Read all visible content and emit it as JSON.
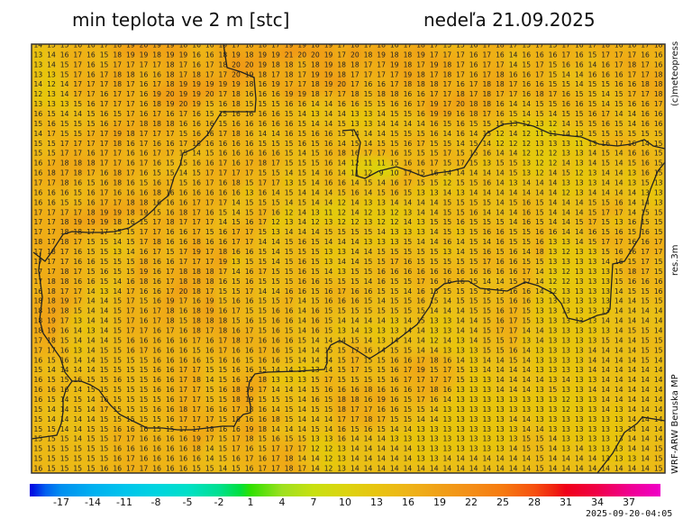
{
  "header": {
    "title": "min teplota ve 2 m [stc]",
    "date": "nedeľa 21.09.2025"
  },
  "side_labels": {
    "copyright": "(c)meteopress",
    "resolution": "res.3m",
    "model": "WRF-ARW Beruska MP"
  },
  "timestamp": "2025-09-20-04:05",
  "colorbar": {
    "labels": [
      "-17",
      "-14",
      "-11",
      "-8",
      "-5",
      "-2",
      "1",
      "4",
      "7",
      "10",
      "13",
      "16",
      "19",
      "22",
      "25",
      "28",
      "31",
      "34",
      "37"
    ],
    "range": [
      -20,
      40
    ],
    "stops": [
      {
        "v": -20,
        "c": "#0000e0"
      },
      {
        "v": -18.5,
        "c": "#0060f0"
      },
      {
        "v": -17,
        "c": "#0090f0"
      },
      {
        "v": -14,
        "c": "#00b0f0"
      },
      {
        "v": -11,
        "c": "#00c4ec"
      },
      {
        "v": -8,
        "c": "#00d4e0"
      },
      {
        "v": -5,
        "c": "#00e0c8"
      },
      {
        "v": -2,
        "c": "#00e090"
      },
      {
        "v": 0,
        "c": "#00e040"
      },
      {
        "v": 1,
        "c": "#30e000"
      },
      {
        "v": 4,
        "c": "#9ee020"
      },
      {
        "v": 7,
        "c": "#c8e010"
      },
      {
        "v": 10,
        "c": "#dcd410"
      },
      {
        "v": 13,
        "c": "#e8c410"
      },
      {
        "v": 16,
        "c": "#eeb418"
      },
      {
        "v": 19,
        "c": "#f0a018"
      },
      {
        "v": 22,
        "c": "#f48e18"
      },
      {
        "v": 25,
        "c": "#f67a10"
      },
      {
        "v": 28,
        "c": "#f65010"
      },
      {
        "v": 30,
        "c": "#f02010"
      },
      {
        "v": 31,
        "c": "#f00018"
      },
      {
        "v": 34,
        "c": "#f00048"
      },
      {
        "v": 37,
        "c": "#f00090"
      },
      {
        "v": 40,
        "c": "#f000c8"
      }
    ]
  },
  "grid": {
    "rows": [
      "14 15 15 16 16 17 18 19 20 19 19 18 16 16 19 17 18 18 17 19 19 18 19 17 18 17 18 16 17 18 17 15 15 16 17 18 17 15 17 15 17 16 17 18 16 16 17 18",
      "13 14 16 17 16 15 18 19 19 18 19 19 16 16 18 19 18 19 19 21 20 20 19 17 20 18 19 18 18 19 17 17 17 16 17 16 14 16 16 16 17 16 15 17 17 17 16 16",
      "13 14 15 17 16 15 17 17 17 17 18 17 16 17 18 20 20 19 18 18 15 18 19 18 18 17 17 19 18 17 19 18 17 16 17 17 14 15 17 15 16 16 14 16 17 18 17 16",
      "13 13 15 17 16 17 18 18 16 16 18 17 18 17 17 20 19 18 17 18 17 19 19 18 17 17 17 17 19 18 17 18 17 16 17 18 16 16 17 15 14 14 16 16 16 17 17 18",
      "14 12 14 17 17 17 18 17 16 17 18 19 19 19 19 19 18 16 19 17 17 18 19 20 17 16 16 17 18 18 18 17 16 17 18 18 17 16 16 15 15 14 15 15 16 16 18 18",
      "12 13 14 17 17 16 17 17 16 19 20 19 19 20 17 18 16 16 16 19 19 18 17 17 18 15 18 18 16 16 17 17 18 17 18 17 17 16 18 17 16 15 15 14 15 17 17 18",
      "13 13 13 15 16 17 17 17 16 18 19 20 19 15 16 18 15 15 15 16 16 14 14 16 16 15 15 16 16 17 19 17 20 18 18 16 14 14 15 15 16 16 15 14 15 16 16 17",
      "16 15 14 14 15 16 15 17 16 17 16 17 16 15 15 16 16 16 16 15 14 13 14 14 13 13 14 15 15 16 19 19 16 18 17 16 15 14 15 14 15 15 16 17 14 14 16 16",
      "15 16 15 15 15 16 17 17 18 18 18 16 16 16 15 16 16 16 16 16 15 14 14 15 13 13 14 14 14 14 16 15 16 15 15 15 13 12 13 12 14 15 15 16 15 14 16 16",
      "14 17 15 15 17 17 19 18 17 17 17 15 16 16 17 18 16 14 14 16 15 16 16 15 14 14 14 15 15 15 16 14 16 14 15 12 14 12 11 11 14 13 15 15 15 15 15 15",
      "15 15 17 17 17 17 18 16 17 16 16 17 18 16 16 16 16 15 15 15 16 15 16 14 15 14 15 15 16 17 15 15 14 15 14 12 12 12 13 13 13 11 13 16 17 16 14 15",
      "15 15 17 17 16 17 17 16 16 17 17 15 14 15 16 16 16 16 16 15 14 15 16 18 16 17 17 16 15 15 15 17 15 15 16 14 14 12 12 12 13 13 14 15 14 16 16 15",
      "16 17 18 18 18 17 17 16 17 16 15 15 16 16 17 16 17 18 17 15 15 15 16 14 12 11 11 15 16 16 17 15 17 15 13 15 15 13 12 12 14 13 14 15 14 15 16 15",
      "16 18 17 18 17 16 18 17 16 15 15 14 15 17 17 17 17 15 15 14 15 14 16 14 11 12 9 10 17 15 16 14 14 14 14 14 15 13 12 14 15 12 13 14 14 13 16 15",
      "17 17 18 16 15 16 18 16 15 16 17 15 16 17 16 18 15 17 17 13 15 14 16 16 14 15 14 16 17 15 15 12 15 15 16 14 13 14 14 14 13 13 13 14 14 13 15 13",
      "16 16 16 15 16 17 16 16 16 18 16 16 16 16 16 16 13 16 14 15 14 14 14 15 16 14 15 16 15 13 13 14 13 14 14 14 14 14 14 14 12 13 14 14 14 14 13 13",
      "16 16 15 15 16 17 17 18 18 16 16 16 17 17 17 14 15 15 15 14 15 14 14 12 14 13 13 14 14 14 14 15 15 15 15 14 15 16 15 14 14 14 15 15 16 14 14 13",
      "17 17 17 17 18 19 19 18 19 15 16 18 17 16 15 14 15 17 16 12 14 13 11 12 14 12 13 12 13 14 14 15 15 16 14 14 14 16 15 14 14 14 15 17 17 14 15 15",
      "17 17 18 19 19 19 18 16 15 17 18 17 17 17 14 15 16 17 12 13 14 12 13 12 12 13 12 12 14 13 15 15 16 15 15 15 14 16 15 14 14 15 17 15 13 16 15 15",
      "17 17 18 18 17 17 15 15 17 17 16 16 17 15 16 17 17 15 13 14 14 14 15 15 15 15 14 13 13 13 14 15 13 15 16 16 15 15 16 16 14 14 16 15 16 15 16 15",
      "18 17 18 17 15 15 14 15 17 18 16 16 18 16 16 17 17 14 14 15 16 15 14 14 14 13 13 13 15 14 14 16 14 15 14 16 15 15 16 13 13 14 15 17 17 16 16 17",
      "17 18 17 16 15 15 13 14 16 17 15 17 19 17 18 16 16 15 14 15 15 15 13 13 14 14 15 15 15 15 15 13 14 15 16 15 16 14 18 13 12 13 13 15 16 16 17 17",
      "17 17 17 16 16 15 15 15 18 16 16 17 17 17 19 13 15 15 14 15 16 15 13 14 14 15 15 17 16 15 15 15 15 15 17 16 16 15 15 13 13 13 13 14 16 15 17 15",
      "17 17 18 17 15 16 15 15 19 16 17 18 18 18 17 14 16 17 15 15 16 15 14 13 15 15 16 16 16 16 16 16 16 16 16 16 16 17 14 13 12 13 13 13 15 18 17 15",
      "17 18 18 16 16 15 14 16 18 16 17 18 18 18 16 15 16 15 15 15 16 16 15 15 15 14 16 15 15 17 16 16 16 15 14 14 15 17 14 12 12 13 13 13 15 16 16 16",
      "16 18 17 17 14 13 14 17 16 16 17 20 18 17 15 15 17 14 14 16 16 15 16 17 16 16 15 15 14 16 15 15 15 15 15 15 16 16 14 12 13 13 13 13 14 15 15 16",
      "18 18 19 17 14 14 15 17 15 16 19 17 16 19 15 16 16 15 15 17 14 15 16 16 16 15 14 15 15 16 15 14 15 15 15 15 16 16 13 13 13 13 13 13 14 14 15 15",
      "18 19 18 15 14 14 15 17 16 17 18 16 18 19 16 17 15 15 16 16 14 16 15 15 15 15 15 15 15 15 14 14 14 15 15 16 17 15 13 13 13 13 13 13 14 14 14 14",
      "18 19 17 13 14 14 15 17 16 17 18 15 18 18 18 15 16 15 16 16 14 16 15 14 14 14 14 13 14 15 13 13 14 14 15 16 17 15 13 13 13 13 13 14 14 14 14 14",
      "18 19 16 14 13 14 15 17 17 16 17 16 18 17 18 16 17 15 16 15 14 16 15 13 14 13 13 13 14 14 13 13 14 14 15 17 17 14 14 13 13 13 13 13 14 15 15 14",
      "17 18 15 14 14 14 15 16 16 16 16 16 17 16 17 18 17 16 16 16 15 14 14 14 15 14 13 14 14 14 12 14 13 14 15 15 17 13 14 13 13 13 13 15 14 14 15 15",
      "17 17 16 13 14 15 15 16 17 16 16 16 15 16 17 16 16 17 16 15 14 14 15 15 17 16 14 15 15 14 14 13 13 13 15 15 16 14 13 13 13 13 14 14 14 14 15 15",
      "16 15 16 14 14 15 15 15 15 16 16 16 16 15 16 16 15 16 16 15 14 14 14 15 17 15 15 16 16 17 18 16 14 13 14 14 15 14 13 13 13 13 14 14 14 14 15 14",
      "15 14 14 14 14 15 15 15 15 16 16 17 17 15 15 16 16 15 14 14 13 13 14 15 17 15 15 16 17 19 15 17 15 13 14 14 14 14 13 13 13 13 14 14 14 14 14 14",
      "16 15 15 16 15 15 16 15 15 16 16 17 18 14 15 16 17 18 13 13 13 15 17 15 15 15 15 16 17 17 17 17 15 13 13 14 14 14 14 13 14 13 13 14 14 14 14 14",
      "16 16 16 14 15 15 15 15 15 16 16 17 17 15 16 18 19 17 14 14 14 15 16 16 16 18 16 16 16 17 18 16 13 13 13 14 14 14 13 15 13 13 14 14 14 14 14 14",
      "16 15 14 15 14 16 15 15 15 15 16 17 17 15 15 18 19 15 15 15 14 16 15 18 18 16 19 16 15 17 16 14 13 13 13 13 13 13 13 13 12 13 13 14 14 14 14 14",
      "15 14 14 15 14 17 15 15 15 16 16 18 17 16 16 17 18 16 14 15 14 15 15 18 17 17 16 16 15 15 14 13 13 13 13 13 13 13 13 13 12 13 13 14 13 14 14 14",
      "15 14 14 14 14 15 15 15 15 15 16 17 17 17 15 18 16 16 18 15 14 14 14 17 17 18 17 15 15 14 14 13 13 13 13 13 14 14 13 13 13 13 13 13 13 14 14 14",
      "15 15 14 14 15 15 16 16 16 15 15 17 17 18 16 16 19 18 14 14 14 15 14 16 15 16 15 14 14 13 13 13 13 13 13 13 13 14 14 13 13 13 13 13 13 14 14 14",
      "15 15 15 14 15 15 17 17 16 16 16 16 19 17 15 17 18 15 16 15 15 13 13 16 14 14 14 13 13 13 13 13 13 13 13 13 13 15 15 14 13 13 13 13 13 14 14 14",
      "15 15 15 15 15 15 16 16 16 16 16 16 18 14 15 17 16 15 17 17 17 12 12 13 14 14 14 14 14 13 13 13 13 13 13 13 14 15 15 14 13 14 13 13 13 14 14 15",
      "15 15 15 15 15 15 16 17 16 16 16 16 16 14 15 16 17 16 17 18 14 14 12 13 14 14 14 14 14 13 13 14 14 14 14 14 14 14 15 14 14 14 14 13 13 13 14 15",
      "16 15 15 15 15 16 16 17 17 16 16 16 15 15 14 15 16 17 17 18 17 14 12 13 14 14 14 14 14 14 14 14 14 14 14 14 14 14 15 14 14 14 14 14 14 14 14 15"
    ]
  }
}
